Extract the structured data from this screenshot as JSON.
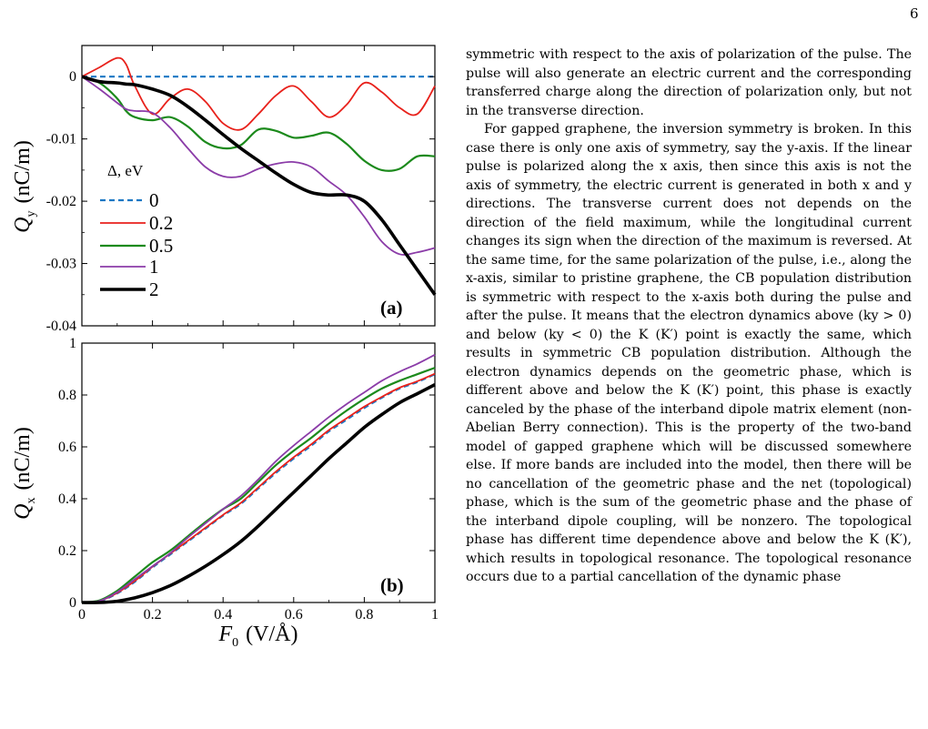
{
  "page_number": "6",
  "figure": {
    "legend": {
      "title": "Δ, eV",
      "entries": [
        "0",
        "0.2",
        "0.5",
        "1",
        "2"
      ]
    },
    "colors": [
      "#1a77c4",
      "#e8211b",
      "#1c8a1c",
      "#8b3ca8",
      "#000000"
    ],
    "panel_a": {
      "tag": "(a)",
      "ylabel_main": "Q",
      "ylabel_sub": "y",
      "ylabel_unit": "(nC/m)",
      "yticks": [
        "0",
        "-0.01",
        "-0.02",
        "-0.03",
        "-0.04"
      ]
    },
    "panel_b": {
      "tag": "(b)",
      "ylabel_main": "Q",
      "ylabel_sub": "x",
      "ylabel_unit": "(nC/m)",
      "yticks": [
        "1",
        "0.8",
        "0.6",
        "0.4",
        "0.2",
        "0"
      ],
      "xticks": [
        "0",
        "0.2",
        "0.4",
        "0.6",
        "0.8",
        "1"
      ],
      "xlabel_main": "F",
      "xlabel_sub": "0",
      "xlabel_unit": "(V/Å)"
    }
  },
  "chart_data": [
    {
      "type": "line",
      "panel": "(a)",
      "xlim": [
        0,
        1
      ],
      "ylim": [
        -0.04,
        0.005
      ],
      "ylabel": "Q_y (nC/m)",
      "x": [
        0,
        0.05,
        0.1,
        0.125,
        0.15,
        0.2,
        0.25,
        0.3,
        0.35,
        0.4,
        0.45,
        0.5,
        0.55,
        0.6,
        0.65,
        0.7,
        0.75,
        0.8,
        0.85,
        0.9,
        0.95,
        1.0
      ],
      "series": [
        {
          "name": "0",
          "values": [
            0,
            0,
            0,
            0,
            0,
            0,
            0,
            0,
            0,
            0,
            0,
            0,
            0,
            0,
            0,
            0,
            0,
            0,
            0,
            0,
            0,
            0
          ]
        },
        {
          "name": "0.2",
          "values": [
            0,
            0.0015,
            0.003,
            0.002,
            -0.0015,
            -0.006,
            -0.0035,
            -0.002,
            -0.004,
            -0.0075,
            -0.0085,
            -0.006,
            -0.003,
            -0.0015,
            -0.004,
            -0.0065,
            -0.0045,
            -0.001,
            -0.0025,
            -0.005,
            -0.006,
            -0.0015
          ]
        },
        {
          "name": "0.5",
          "values": [
            0,
            -0.001,
            -0.0035,
            -0.0055,
            -0.0065,
            -0.007,
            -0.0065,
            -0.008,
            -0.0105,
            -0.0115,
            -0.011,
            -0.0085,
            -0.0087,
            -0.0098,
            -0.0095,
            -0.009,
            -0.0108,
            -0.0135,
            -0.015,
            -0.0148,
            -0.0128,
            -0.0128
          ]
        },
        {
          "name": "1",
          "values": [
            0,
            -0.002,
            -0.0042,
            -0.0052,
            -0.0055,
            -0.0058,
            -0.0082,
            -0.0115,
            -0.0145,
            -0.016,
            -0.016,
            -0.0148,
            -0.014,
            -0.0137,
            -0.0145,
            -0.0168,
            -0.019,
            -0.0225,
            -0.0265,
            -0.0285,
            -0.0282,
            -0.0275
          ]
        },
        {
          "name": "2",
          "values": [
            0,
            -0.0008,
            -0.001,
            -0.0012,
            -0.0013,
            -0.002,
            -0.003,
            -0.0048,
            -0.007,
            -0.0093,
            -0.0115,
            -0.0135,
            -0.0155,
            -0.0173,
            -0.0186,
            -0.019,
            -0.019,
            -0.02,
            -0.023,
            -0.027,
            -0.031,
            -0.035
          ]
        }
      ]
    },
    {
      "type": "line",
      "panel": "(b)",
      "xlim": [
        0,
        1
      ],
      "ylim": [
        0,
        1
      ],
      "xlabel": "F_0 (V/Å)",
      "ylabel": "Q_x (nC/m)",
      "x": [
        0,
        0.05,
        0.1,
        0.15,
        0.2,
        0.25,
        0.3,
        0.35,
        0.4,
        0.45,
        0.5,
        0.55,
        0.6,
        0.65,
        0.7,
        0.75,
        0.8,
        0.85,
        0.9,
        0.95,
        1.0
      ],
      "series": [
        {
          "name": "0",
          "values": [
            0,
            0.005,
            0.035,
            0.08,
            0.135,
            0.185,
            0.235,
            0.285,
            0.335,
            0.38,
            0.44,
            0.5,
            0.555,
            0.605,
            0.66,
            0.705,
            0.75,
            0.79,
            0.825,
            0.85,
            0.88
          ]
        },
        {
          "name": "0.2",
          "values": [
            0,
            0.006,
            0.037,
            0.083,
            0.138,
            0.188,
            0.238,
            0.288,
            0.338,
            0.384,
            0.444,
            0.505,
            0.56,
            0.61,
            0.665,
            0.71,
            0.755,
            0.793,
            0.828,
            0.853,
            0.882
          ]
        },
        {
          "name": "0.5",
          "values": [
            0,
            0.008,
            0.045,
            0.1,
            0.155,
            0.2,
            0.255,
            0.31,
            0.36,
            0.4,
            0.465,
            0.53,
            0.585,
            0.635,
            0.69,
            0.74,
            0.785,
            0.825,
            0.855,
            0.88,
            0.905
          ]
        },
        {
          "name": "1",
          "values": [
            0,
            0.006,
            0.04,
            0.09,
            0.14,
            0.19,
            0.25,
            0.305,
            0.36,
            0.41,
            0.475,
            0.545,
            0.605,
            0.66,
            0.715,
            0.765,
            0.81,
            0.855,
            0.89,
            0.92,
            0.955
          ]
        },
        {
          "name": "2",
          "values": [
            0,
            0,
            0.005,
            0.018,
            0.038,
            0.065,
            0.1,
            0.14,
            0.185,
            0.235,
            0.295,
            0.36,
            0.425,
            0.49,
            0.555,
            0.615,
            0.675,
            0.725,
            0.77,
            0.805,
            0.84
          ]
        }
      ]
    }
  ],
  "body_text": [
    "symmetric with respect to the axis of polarization of the pulse. The pulse will also generate an electric current and the corresponding transferred charge along the direction of polarization only, but not in the transverse direction.",
    "For gapped graphene, the inversion symmetry is broken. In this case there is only one axis of symmetry, say the y-axis. If the linear pulse is polarized along the x axis, then since this axis is not the axis of symmetry, the electric current is generated in both x and y directions. The transverse current does not depends on the direction of the field maximum, while the longitudinal current changes its sign when the direction of the maximum is reversed. At the same time, for the same polarization of the pulse, i.e., along the x-axis, similar to pristine graphene, the CB population distribution is symmetric with respect to the x-axis both during the pulse and after the pulse. It means that the electron dynamics above (ky > 0) and below (ky < 0) the K (K′) point is exactly the same, which results in symmetric CB population distribution. Although the electron dynamics depends on the geometric phase, which is different above and below the K (K′) point, this phase is exactly canceled by the phase of the interband dipole matrix element (non-Abelian Berry connection). This is the property of the two-band model of gapped graphene which will be discussed somewhere else. If more bands are included into the model, then there will be no cancellation of the geometric phase and the net (topological) phase, which is the sum of the geometric phase and the phase of the interband dipole coupling, will be nonzero. The topological phase has different time dependence above and below the K (K′), which results in topological resonance. The topological resonance occurs due to a partial cancellation of the dynamic phase"
  ]
}
